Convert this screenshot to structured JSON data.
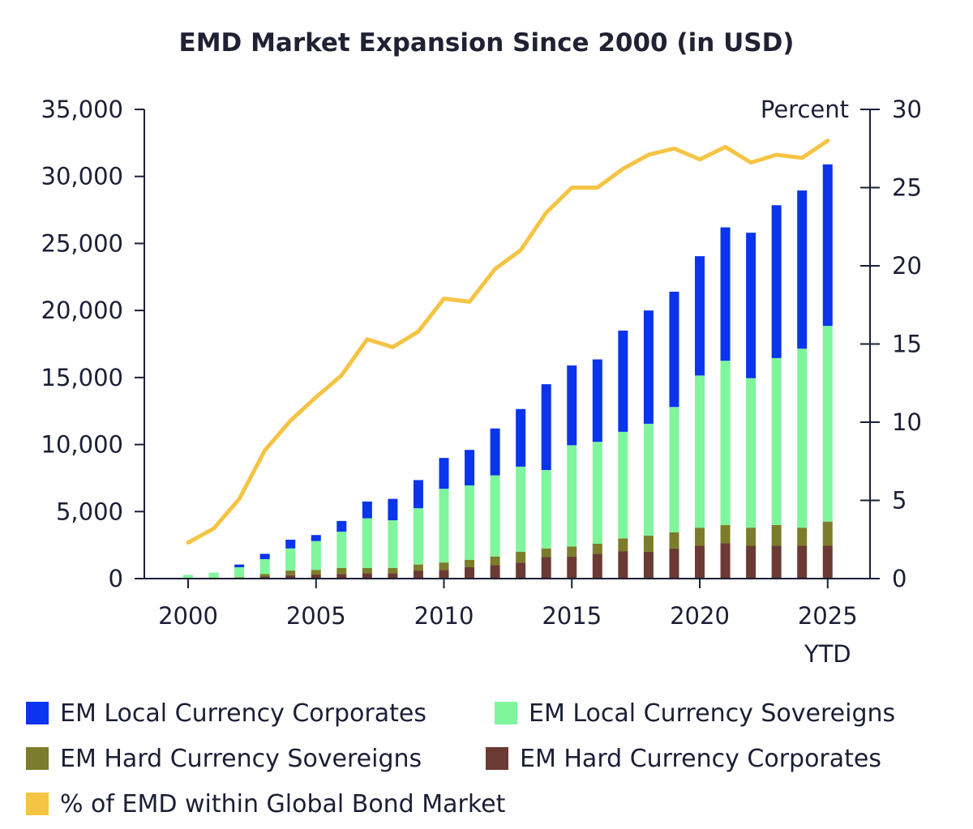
{
  "chart_data": {
    "type": "bar",
    "stacked": true,
    "title": "EMD Market Expansion Since 2000 (in USD)",
    "categories": [
      "2000",
      "2001",
      "2002",
      "2003",
      "2004",
      "2005",
      "2006",
      "2007",
      "2008",
      "2009",
      "2010",
      "2011",
      "2012",
      "2013",
      "2014",
      "2015",
      "2016",
      "2017",
      "2018",
      "2019",
      "2020",
      "2021",
      "2022",
      "2023",
      "2024",
      "2025 YTD"
    ],
    "x_tick_labels": [
      "2000",
      "2005",
      "2010",
      "2015",
      "2020",
      "2025"
    ],
    "x_tick_sub_label": "YTD",
    "y_left": {
      "min": 0,
      "max": 35000,
      "ticks": [
        "0",
        "5,000",
        "10,000",
        "15,000",
        "20,000",
        "25,000",
        "30,000",
        "35,000"
      ]
    },
    "y_right": {
      "min": 0,
      "max": 30,
      "label": "Percent",
      "ticks": [
        "0",
        "5",
        "10",
        "15",
        "20",
        "25",
        "30"
      ]
    },
    "series": [
      {
        "name": "EM Hard Currency Corporates",
        "color": "#6b3a33",
        "values": [
          0,
          0,
          50,
          150,
          250,
          300,
          350,
          400,
          400,
          600,
          650,
          850,
          1000,
          1200,
          1600,
          1650,
          1850,
          2050,
          2000,
          2250,
          2450,
          2650,
          2450,
          2450,
          2450,
          2450
        ]
      },
      {
        "name": "EM Hard Currency Sovereigns",
        "color": "#7b7d2a",
        "values": [
          0,
          0,
          50,
          200,
          350,
          350,
          450,
          400,
          400,
          450,
          550,
          550,
          650,
          800,
          650,
          750,
          750,
          950,
          1200,
          1200,
          1350,
          1350,
          1350,
          1550,
          1350,
          1800
        ]
      },
      {
        "name": "EM Local Currency Sovereigns",
        "color": "#7ff59c",
        "values": [
          280,
          450,
          750,
          1100,
          1650,
          2150,
          2700,
          3700,
          3550,
          4200,
          5500,
          5550,
          6050,
          6350,
          5850,
          7550,
          7600,
          7950,
          8350,
          9350,
          11350,
          12250,
          11150,
          12450,
          13350,
          14600
        ]
      },
      {
        "name": "EM Local Currency Corporates",
        "color": "#0a34ed",
        "values": [
          0,
          0,
          200,
          400,
          650,
          450,
          800,
          1250,
          1600,
          2100,
          2300,
          2650,
          3500,
          4300,
          6400,
          5950,
          6150,
          7550,
          8450,
          8600,
          8900,
          9950,
          10850,
          11400,
          11800,
          12050
        ]
      },
      {
        "name": "% of EMD within Global Bond Market",
        "color": "#f6c444",
        "type": "line",
        "axis": "right",
        "values": [
          2.3,
          3.2,
          5.1,
          8.2,
          10.1,
          11.6,
          13.0,
          15.3,
          14.8,
          15.8,
          17.9,
          17.7,
          19.8,
          21.0,
          23.4,
          25.0,
          25.0,
          26.2,
          27.1,
          27.5,
          26.8,
          27.6,
          26.6,
          27.1,
          26.9,
          28.0
        ]
      }
    ],
    "legend_position": "bottom"
  },
  "legend": {
    "items": [
      {
        "label": "EM Local Currency Corporates",
        "color": "#0a34ed"
      },
      {
        "label": "EM Local Currency Sovereigns",
        "color": "#7ff59c"
      },
      {
        "label": "EM Hard Currency Sovereigns",
        "color": "#7b7d2a"
      },
      {
        "label": "EM Hard Currency Corporates",
        "color": "#6b3a33"
      },
      {
        "label": "% of EMD within Global Bond Market",
        "color": "#f6c444"
      }
    ]
  }
}
